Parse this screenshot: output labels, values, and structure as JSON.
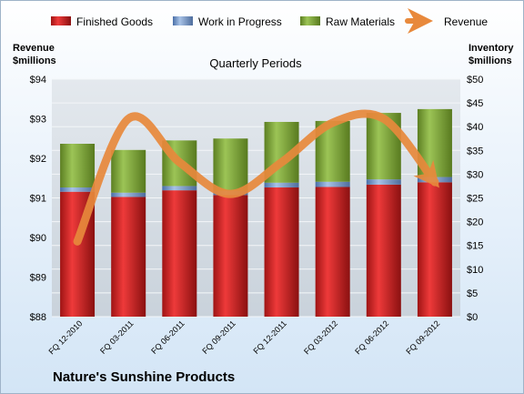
{
  "colors": {
    "finished_goods": "#cc1f1f",
    "work_in_progress": "#6f93c6",
    "raw_materials": "#7ea33c",
    "revenue": "#e8893c"
  },
  "chart_data": {
    "type": "bar",
    "stacked": true,
    "title": "Nature's Sunshine Products",
    "subtitle": "Quarterly Periods",
    "left_axis_label": "Revenue\n$millions",
    "right_axis_label": "Inventory\n$millions",
    "categories": [
      "FQ 12-2010",
      "FQ 03-2011",
      "FQ 06-2011",
      "FQ 09-2011",
      "FQ 12-2011",
      "FQ 03-2012",
      "FQ 06-2012",
      "FQ 09-2012"
    ],
    "series": [
      {
        "name": "Finished Goods",
        "axis": "right",
        "type": "bar",
        "values": [
          26.3,
          25.2,
          26.6,
          25.6,
          27.2,
          27.3,
          27.8,
          28.3
        ]
      },
      {
        "name": "Work in Progress",
        "axis": "right",
        "type": "bar",
        "values": [
          0.9,
          0.9,
          0.9,
          0.9,
          1.0,
          1.1,
          1.1,
          1.1
        ]
      },
      {
        "name": "Raw Materials",
        "axis": "right",
        "type": "bar",
        "values": [
          9.2,
          9.0,
          9.6,
          11.0,
          12.8,
          12.8,
          14.0,
          14.3
        ]
      },
      {
        "name": "Revenue",
        "axis": "left",
        "type": "line",
        "values": [
          89.9,
          93.0,
          91.9,
          91.1,
          91.9,
          92.9,
          93.0,
          91.4
        ]
      }
    ],
    "left_axis": {
      "min": 88,
      "max": 94,
      "step": 1,
      "ticks": [
        "$88",
        "$89",
        "$90",
        "$91",
        "$92",
        "$93",
        "$94"
      ]
    },
    "right_axis": {
      "min": 0,
      "max": 50,
      "step": 5,
      "ticks": [
        "$0",
        "$5",
        "$10",
        "$15",
        "$20",
        "$25",
        "$30",
        "$35",
        "$40",
        "$45",
        "$50"
      ]
    },
    "grid": true,
    "legend": "top"
  }
}
